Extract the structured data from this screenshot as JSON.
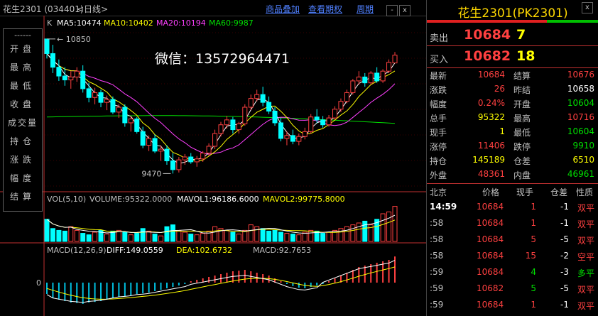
{
  "header": {
    "symbol_title": "花生2301 (034401)",
    "period": "<日线>",
    "menus": [
      "商品叠加",
      "查看期权",
      "周期"
    ],
    "win_buttons": [
      "-",
      "x"
    ]
  },
  "side_menu": {
    "separator": "------",
    "items": [
      "开盘",
      "最高",
      "最低",
      "收盘",
      "成交量",
      "持仓",
      "涨跌",
      "幅度",
      "结算"
    ]
  },
  "watermark": "微信：13572964471",
  "main_chart": {
    "prefix": "K",
    "ma_labels": [
      {
        "text": "MA5:10474",
        "color": "#ffffff"
      },
      {
        "text": "MA10:10402",
        "color": "#ffff00"
      },
      {
        "text": "MA20:10194",
        "color": "#ff40ff"
      },
      {
        "text": "MA60:9987",
        "color": "#00e000"
      }
    ],
    "high_label": "10850",
    "low_label": "9470"
  },
  "volume_panel": {
    "labels": [
      {
        "text": "VOL(5,10)",
        "color": "#c0c0c0"
      },
      {
        "text": "VOLUME:95322.0000",
        "color": "#c0c0c0"
      },
      {
        "text": "MAVOL1:96186.6000",
        "color": "#ffffff"
      },
      {
        "text": "MAVOL2:99775.8000",
        "color": "#ffff00"
      }
    ]
  },
  "macd_panel": {
    "labels": [
      {
        "text": "MACD(12,26,9)",
        "color": "#c0c0c0"
      },
      {
        "text": "DIFF:149.0559",
        "color": "#ffffff"
      },
      {
        "text": "DEA:102.6732",
        "color": "#ffff00"
      },
      {
        "text": "MACD:92.7653",
        "color": "#c0c0c0"
      }
    ],
    "zero_label": "0"
  },
  "chart_data": {
    "type": "candlestick",
    "title": "花生2301 (034401) 日线",
    "ylim": [
      9400,
      10900
    ],
    "y_labels": {
      "high": 10850,
      "low": 9470
    },
    "candles": [
      [
        10850,
        10850,
        10650,
        10700
      ],
      [
        10700,
        10790,
        10500,
        10560
      ],
      [
        10560,
        10640,
        10420,
        10470
      ],
      [
        10470,
        10560,
        10370,
        10430
      ],
      [
        10430,
        10520,
        10340,
        10460
      ],
      [
        10460,
        10560,
        10410,
        10520
      ],
      [
        10520,
        10580,
        10300,
        10340
      ],
      [
        10340,
        10400,
        10200,
        10250
      ],
      [
        10250,
        10350,
        10180,
        10300
      ],
      [
        10300,
        10330,
        10150,
        10200
      ],
      [
        10200,
        10270,
        10120,
        10230
      ],
      [
        10230,
        10260,
        10080,
        10100
      ],
      [
        10100,
        10180,
        10040,
        10150
      ],
      [
        10150,
        10180,
        9950,
        9990
      ],
      [
        9990,
        10060,
        9900,
        10030
      ],
      [
        10030,
        10050,
        9880,
        9900
      ],
      [
        9900,
        9950,
        9730,
        9760
      ],
      [
        9760,
        9860,
        9700,
        9830
      ],
      [
        9830,
        9870,
        9680,
        9700
      ],
      [
        9700,
        9760,
        9600,
        9720
      ],
      [
        9720,
        9760,
        9560,
        9600
      ],
      [
        9600,
        9680,
        9470,
        9510
      ],
      [
        9510,
        9640,
        9480,
        9610
      ],
      [
        9610,
        9670,
        9560,
        9640
      ],
      [
        9640,
        9680,
        9570,
        9590
      ],
      [
        9590,
        9650,
        9540,
        9620
      ],
      [
        9620,
        9700,
        9590,
        9680
      ],
      [
        9680,
        9780,
        9650,
        9750
      ],
      [
        9750,
        9920,
        9720,
        9880
      ],
      [
        9880,
        10000,
        9850,
        9970
      ],
      [
        9970,
        10060,
        9930,
        10020
      ],
      [
        10020,
        10050,
        9880,
        9920
      ],
      [
        9920,
        10000,
        9880,
        9980
      ],
      [
        9980,
        10180,
        9960,
        10150
      ],
      [
        10150,
        10280,
        10120,
        10240
      ],
      [
        10240,
        10330,
        10210,
        10280
      ],
      [
        10280,
        10360,
        10160,
        10200
      ],
      [
        10200,
        10260,
        10080,
        10110
      ],
      [
        10110,
        10150,
        9960,
        9990
      ],
      [
        9990,
        10040,
        9800,
        9830
      ],
      [
        9830,
        9900,
        9760,
        9860
      ],
      [
        9860,
        9920,
        9770,
        9800
      ],
      [
        9800,
        9880,
        9760,
        9850
      ],
      [
        9850,
        9940,
        9820,
        9900
      ],
      [
        9900,
        10080,
        9880,
        10050
      ],
      [
        10050,
        10130,
        9990,
        10020
      ],
      [
        10020,
        10060,
        9940,
        9970
      ],
      [
        9970,
        10070,
        9950,
        10040
      ],
      [
        10040,
        10160,
        10020,
        10130
      ],
      [
        10130,
        10240,
        10100,
        10210
      ],
      [
        10210,
        10330,
        10190,
        10300
      ],
      [
        10300,
        10440,
        10280,
        10420
      ],
      [
        10420,
        10520,
        10380,
        10460
      ],
      [
        10460,
        10500,
        10360,
        10400
      ],
      [
        10400,
        10520,
        10380,
        10500
      ],
      [
        10500,
        10560,
        10400,
        10420
      ],
      [
        10420,
        10540,
        10400,
        10520
      ],
      [
        10520,
        10640,
        10500,
        10610
      ],
      [
        10604,
        10716,
        10604,
        10684
      ]
    ],
    "ma_series": [
      {
        "name": "MA5",
        "color": "#ffffff",
        "start": 10750,
        "end": 10474
      },
      {
        "name": "MA10",
        "color": "#ffff00",
        "start": 10700,
        "end": 10402
      },
      {
        "name": "MA20",
        "color": "#ff40ff",
        "start": 10620,
        "end": 10194
      },
      {
        "name": "MA60",
        "color": "#00e000",
        "start": 10050,
        "end": 9987
      }
    ],
    "volume": [
      60,
      35,
      30,
      28,
      40,
      30,
      22,
      18,
      25,
      30,
      20,
      28,
      30,
      25,
      18,
      22,
      35,
      28,
      20,
      15,
      40,
      45,
      30,
      25,
      20,
      18,
      22,
      28,
      40,
      35,
      30,
      25,
      20,
      30,
      45,
      40,
      35,
      28,
      30,
      25,
      22,
      20,
      18,
      25,
      30,
      28,
      22,
      25,
      30,
      35,
      40,
      45,
      50,
      55,
      45,
      60,
      75,
      80,
      95
    ],
    "macd_hist": [
      -40,
      -55,
      -60,
      -65,
      -70,
      -72,
      -75,
      -70,
      -68,
      -65,
      -60,
      -55,
      -50,
      -48,
      -45,
      -40,
      -38,
      -35,
      -30,
      -25,
      -20,
      -15,
      -10,
      -5,
      5,
      10,
      15,
      20,
      25,
      30,
      35,
      40,
      42,
      45,
      40,
      35,
      30,
      25,
      15,
      5,
      -5,
      -12,
      -18,
      -20,
      -15,
      -10,
      -5,
      5,
      15,
      25,
      35,
      45,
      55,
      60,
      65,
      70,
      75,
      80,
      92
    ]
  },
  "right_panel": {
    "title": "花生2301(PK2301)",
    "close_btn": "x",
    "sell": {
      "label": "卖出",
      "price": "10684",
      "volume": "7"
    },
    "buy": {
      "label": "买入",
      "price": "10682",
      "volume": "18"
    },
    "quotes": [
      {
        "l1": "最新",
        "v1": "10684",
        "c1": "#ff4040",
        "l2": "结算",
        "v2": "10676",
        "c2": "#ff4040"
      },
      {
        "l1": "涨跌",
        "v1": "26",
        "c1": "#ff4040",
        "l2": "昨结",
        "v2": "10658",
        "c2": "#ffffff"
      },
      {
        "l1": "幅度",
        "v1": "0.24%",
        "c1": "#ff4040",
        "l2": "开盘",
        "v2": "10604",
        "c2": "#00e000"
      },
      {
        "l1": "总手",
        "v1": "95322",
        "c1": "#ffff00",
        "l2": "最高",
        "v2": "10716",
        "c2": "#ff4040"
      },
      {
        "l1": "现手",
        "v1": "1",
        "c1": "#ffff00",
        "l2": "最低",
        "v2": "10604",
        "c2": "#00e000"
      },
      {
        "l1": "涨停",
        "v1": "11406",
        "c1": "#ff4040",
        "l2": "跌停",
        "v2": "9910",
        "c2": "#00e000"
      },
      {
        "l1": "持仓",
        "v1": "145189",
        "c1": "#ffff00",
        "l2": "仓差",
        "v2": "6510",
        "c2": "#ffff00"
      },
      {
        "l1": "外盘",
        "v1": "48361",
        "c1": "#ff4040",
        "l2": "内盘",
        "v2": "46961",
        "c2": "#00e000"
      }
    ],
    "tick_headers": [
      "北京",
      "价格",
      "现手",
      "仓差",
      "性质"
    ],
    "ticks": [
      {
        "time": "14:59",
        "price": "10684",
        "vol": "1",
        "vol_color": "#ff4040",
        "diff": "-1",
        "nature": "双平",
        "nature_color": "#ff4040"
      },
      {
        "time": ":58",
        "price": "10684",
        "vol": "1",
        "vol_color": "#ff4040",
        "diff": "-1",
        "nature": "双平",
        "nature_color": "#ff4040"
      },
      {
        "time": ":58",
        "price": "10684",
        "vol": "5",
        "vol_color": "#ff4040",
        "diff": "-5",
        "nature": "双平",
        "nature_color": "#ff4040"
      },
      {
        "time": ":58",
        "price": "10684",
        "vol": "15",
        "vol_color": "#ff4040",
        "diff": "-2",
        "nature": "空平",
        "nature_color": "#ff4040"
      },
      {
        "time": ":59",
        "price": "10684",
        "vol": "4",
        "vol_color": "#00e000",
        "diff": "-3",
        "nature": "多平",
        "nature_color": "#00e000"
      },
      {
        "time": ":59",
        "price": "10682",
        "vol": "5",
        "vol_color": "#00e000",
        "diff": "-5",
        "nature": "双平",
        "nature_color": "#ff4040"
      },
      {
        "time": ":59",
        "price": "10684",
        "vol": "1",
        "vol_color": "#ff4040",
        "diff": "-1",
        "nature": "双平",
        "nature_color": "#ff4040"
      }
    ]
  }
}
